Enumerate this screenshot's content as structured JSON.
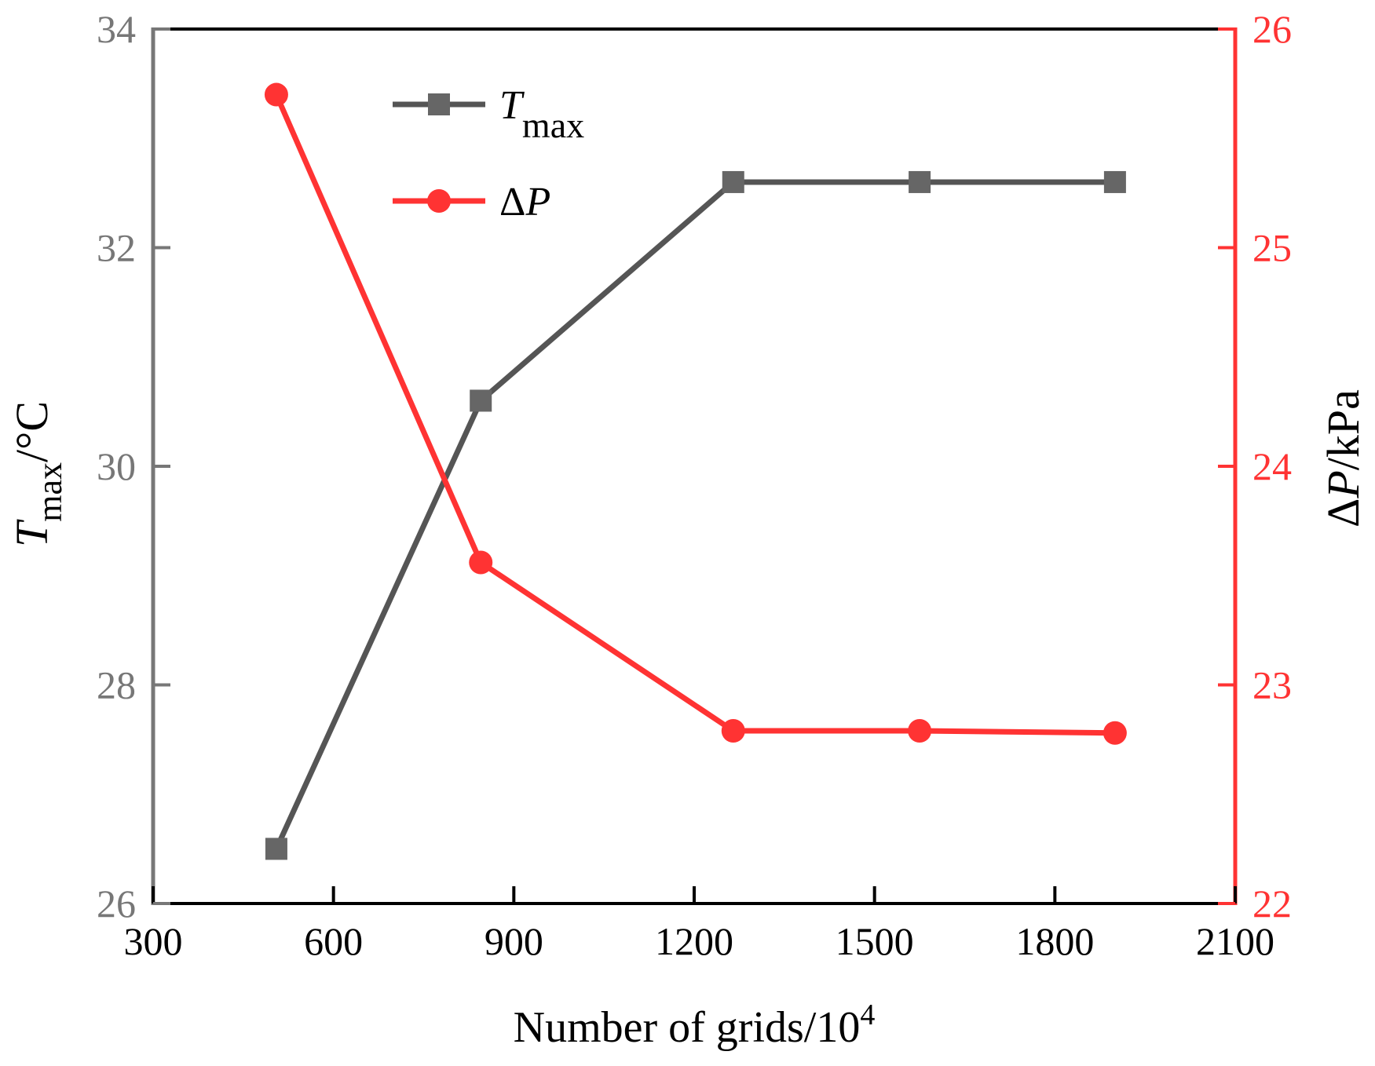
{
  "chart_data": {
    "type": "line",
    "xlabel": "Number of grids/10",
    "xlabel_superscript": "4",
    "ylabel_left_main": "T",
    "ylabel_left_sub": "max",
    "ylabel_left_unit": "/°C",
    "ylabel_right_main": "ΔP",
    "ylabel_right_unit": "/kPa",
    "x_axis": {
      "range": [
        300,
        2100
      ],
      "ticks": [
        300,
        600,
        900,
        1200,
        1500,
        1800,
        2100
      ]
    },
    "y_left_axis": {
      "range": [
        26,
        34
      ],
      "ticks": [
        26,
        28,
        30,
        32,
        34
      ],
      "color": "#777777"
    },
    "y_right_axis": {
      "range": [
        22,
        26
      ],
      "ticks": [
        22,
        23,
        24,
        25,
        26
      ],
      "color": "#ff3333"
    },
    "legend_position": "top-center",
    "series": [
      {
        "name_main": "T",
        "name_sub": "max",
        "axis": "left",
        "marker": "square",
        "color": "#555555",
        "marker_color": "#666666",
        "x": [
          505,
          845,
          1265,
          1575,
          1900
        ],
        "y": [
          26.5,
          30.6,
          32.6,
          32.6,
          32.6
        ]
      },
      {
        "name_main": "ΔP",
        "name_sub": "",
        "axis": "right",
        "marker": "circle",
        "color": "#ff3333",
        "marker_color": "#ff3333",
        "x": [
          505,
          845,
          1265,
          1575,
          1900
        ],
        "y": [
          25.7,
          23.56,
          22.79,
          22.79,
          22.78
        ]
      }
    ]
  }
}
